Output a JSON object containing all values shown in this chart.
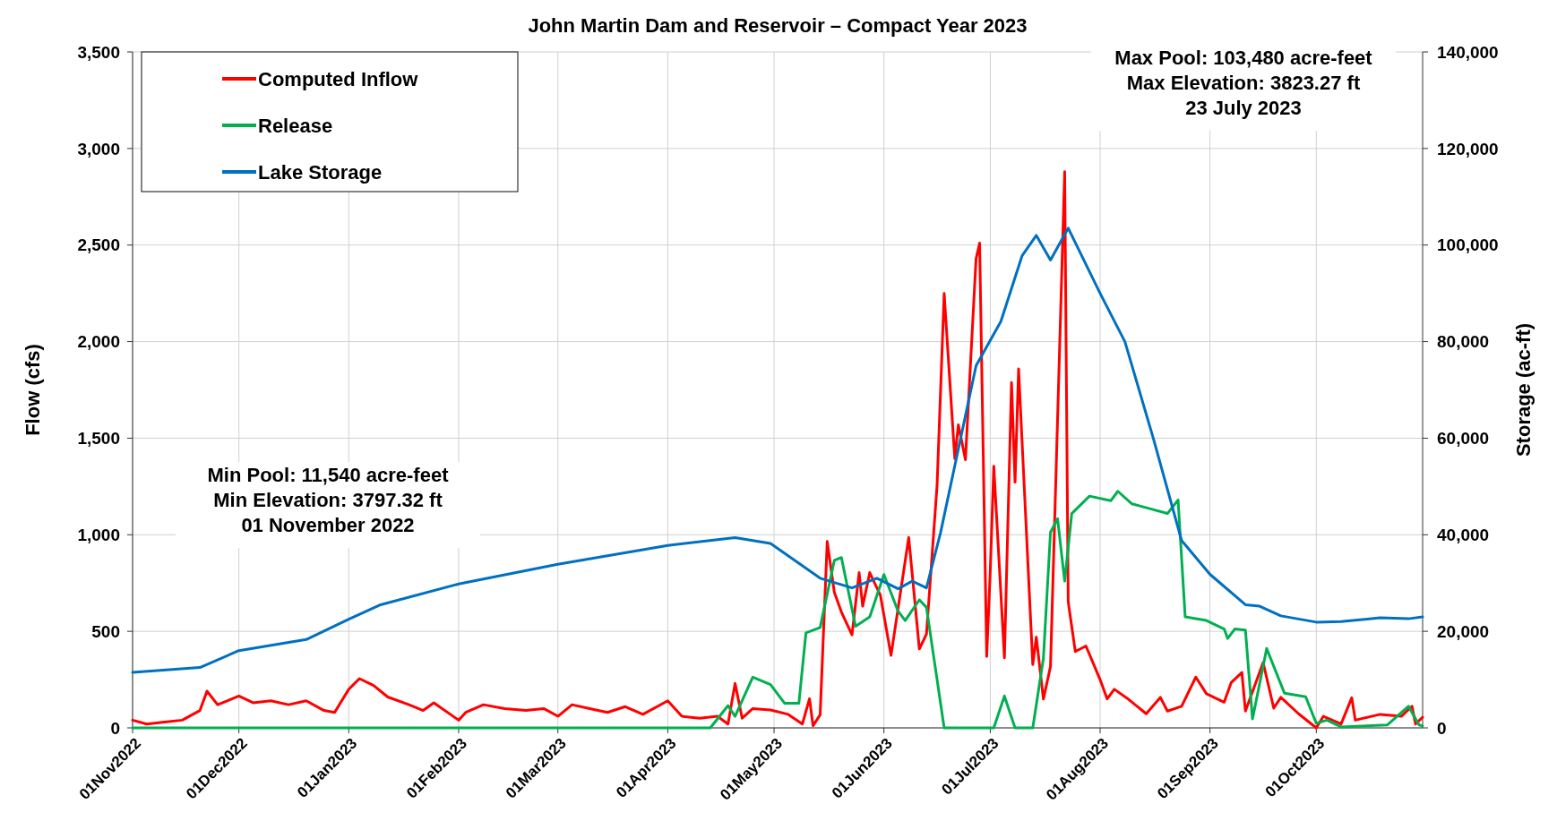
{
  "chart_data": {
    "type": "line",
    "title": "John Martin Dam and Reservoir – Compact Year 2023",
    "ylabel": "Flow (cfs)",
    "y2label": "Storage (ac-ft)",
    "xlim": [
      "2022-11-01",
      "2023-10-31"
    ],
    "xticks": [
      {
        "value": "2022-11-01",
        "label": "01Nov2022"
      },
      {
        "value": "2022-12-01",
        "label": "01Dec2022"
      },
      {
        "value": "2023-01-01",
        "label": "01Jan2023"
      },
      {
        "value": "2023-02-01",
        "label": "01Feb2023"
      },
      {
        "value": "2023-03-01",
        "label": "01Mar2023"
      },
      {
        "value": "2023-04-01",
        "label": "01Apr2023"
      },
      {
        "value": "2023-05-01",
        "label": "01May2023"
      },
      {
        "value": "2023-06-01",
        "label": "01Jun2023"
      },
      {
        "value": "2023-07-01",
        "label": "01Jul2023"
      },
      {
        "value": "2023-08-01",
        "label": "01Aug2023"
      },
      {
        "value": "2023-09-01",
        "label": "01Sep2023"
      },
      {
        "value": "2023-10-01",
        "label": "01Oct2023"
      }
    ],
    "ylim": [
      0,
      3500
    ],
    "yticks": [
      0,
      500,
      {
        "value": 1000,
        "label": "1,000"
      },
      {
        "value": 1500,
        "label": "1,500"
      },
      {
        "value": 2000,
        "label": "2,000"
      },
      {
        "value": 2500,
        "label": "2,500"
      },
      {
        "value": 3000,
        "label": "3,000"
      },
      {
        "value": 3500,
        "label": "3,500"
      }
    ],
    "y2lim": [
      0,
      140000
    ],
    "y2ticks": [
      0,
      {
        "value": 20000,
        "label": "20,000"
      },
      {
        "value": 40000,
        "label": "40,000"
      },
      {
        "value": 60000,
        "label": "60,000"
      },
      {
        "value": 80000,
        "label": "80,000"
      },
      {
        "value": 100000,
        "label": "100,000"
      },
      {
        "value": 120000,
        "label": "120,000"
      },
      {
        "value": 140000,
        "label": "140,000"
      }
    ],
    "grid": true,
    "legend": "top left",
    "line_style": "solid",
    "annotations": [
      "Min Pool: 11,540 acre-feet\nMin Elevation: 3797.32 ft\n01 November 2022",
      "Max Pool: 103,480 acre-feet\nMax Elevation: 3823.27 ft\n23 July 2023"
    ],
    "series": [
      {
        "name": "Computed Inflow",
        "color": "#ff0000",
        "x": [
          "2022-11-01",
          "2022-11-05",
          "2022-11-10",
          "2022-11-15",
          "2022-11-20",
          "2022-11-22",
          "2022-11-25",
          "2022-12-01",
          "2022-12-05",
          "2022-12-10",
          "2022-12-15",
          "2022-12-20",
          "2022-12-25",
          "2022-12-28",
          "2023-01-01",
          "2023-01-04",
          "2023-01-08",
          "2023-01-12",
          "2023-01-18",
          "2023-01-22",
          "2023-01-25",
          "2023-02-01",
          "2023-02-03",
          "2023-02-08",
          "2023-02-14",
          "2023-02-20",
          "2023-02-25",
          "2023-03-01",
          "2023-03-05",
          "2023-03-10",
          "2023-03-15",
          "2023-03-20",
          "2023-03-25",
          "2023-04-01",
          "2023-04-05",
          "2023-04-10",
          "2023-04-15",
          "2023-04-18",
          "2023-04-20",
          "2023-04-22",
          "2023-04-25",
          "2023-04-30",
          "2023-05-05",
          "2023-05-09",
          "2023-05-11",
          "2023-05-12",
          "2023-05-14",
          "2023-05-16",
          "2023-05-18",
          "2023-05-20",
          "2023-05-23",
          "2023-05-25",
          "2023-05-26",
          "2023-05-28",
          "2023-05-31",
          "2023-06-03",
          "2023-06-08",
          "2023-06-11",
          "2023-06-13",
          "2023-06-16",
          "2023-06-18",
          "2023-06-21",
          "2023-06-22",
          "2023-06-24",
          "2023-06-27",
          "2023-06-28",
          "2023-06-30",
          "2023-07-01",
          "2023-07-02",
          "2023-07-05",
          "2023-07-07",
          "2023-07-08",
          "2023-07-09",
          "2023-07-13",
          "2023-07-14",
          "2023-07-16",
          "2023-07-18",
          "2023-07-22",
          "2023-07-23",
          "2023-07-25",
          "2023-07-28",
          "2023-08-01",
          "2023-08-03",
          "2023-08-05",
          "2023-08-09",
          "2023-08-14",
          "2023-08-18",
          "2023-08-20",
          "2023-08-24",
          "2023-08-28",
          "2023-08-31",
          "2023-09-05",
          "2023-09-07",
          "2023-09-10",
          "2023-09-11",
          "2023-09-16",
          "2023-09-19",
          "2023-09-21",
          "2023-09-26",
          "2023-10-01",
          "2023-10-03",
          "2023-10-08",
          "2023-10-11",
          "2023-10-12",
          "2023-10-19",
          "2023-10-25",
          "2023-10-28",
          "2023-10-29",
          "2023-10-31"
        ],
        "values": [
          40,
          20,
          30,
          40,
          90,
          190,
          120,
          165,
          130,
          140,
          120,
          140,
          90,
          80,
          200,
          255,
          220,
          160,
          120,
          90,
          130,
          40,
          80,
          120,
          100,
          90,
          100,
          60,
          120,
          100,
          80,
          110,
          70,
          140,
          60,
          50,
          60,
          20,
          230,
          50,
          100,
          93,
          70,
          20,
          151,
          11,
          68,
          965,
          702,
          600,
          482,
          804,
          630,
          804,
          687,
          375,
          986,
          409,
          485,
          1257,
          2249,
          1394,
          1569,
          1389,
          2429,
          2510,
          370,
          809,
          1355,
          363,
          1788,
          1272,
          1859,
          328,
          470,
          149,
          318,
          2880,
          653,
          395,
          424,
          250,
          150,
          200,
          148,
          73,
          158,
          87,
          112,
          263,
          177,
          133,
          235,
          287,
          87,
          338,
          102,
          158,
          73,
          0,
          60,
          20,
          156,
          40,
          70,
          60,
          112,
          20,
          55
        ]
      },
      {
        "name": "Release",
        "color": "#00b050",
        "x": [
          "2022-11-01",
          "2023-04-13",
          "2023-04-18",
          "2023-04-20",
          "2023-04-25",
          "2023-04-30",
          "2023-05-04",
          "2023-05-08",
          "2023-05-10",
          "2023-05-14",
          "2023-05-18",
          "2023-05-20",
          "2023-05-24",
          "2023-05-28",
          "2023-06-01",
          "2023-06-05",
          "2023-06-07",
          "2023-06-11",
          "2023-06-13",
          "2023-06-18",
          "2023-07-02",
          "2023-07-05",
          "2023-07-08",
          "2023-07-13",
          "2023-07-16",
          "2023-07-18",
          "2023-07-20",
          "2023-07-22",
          "2023-07-24",
          "2023-07-29",
          "2023-08-04",
          "2023-08-06",
          "2023-08-10",
          "2023-08-15",
          "2023-08-20",
          "2023-08-23",
          "2023-08-25",
          "2023-08-31",
          "2023-09-05",
          "2023-09-06",
          "2023-09-08",
          "2023-09-11",
          "2023-09-13",
          "2023-09-17",
          "2023-09-22",
          "2023-09-28",
          "2023-10-01",
          "2023-10-04",
          "2023-10-08",
          "2023-10-21",
          "2023-10-27",
          "2023-10-30",
          "2023-10-31"
        ],
        "values": [
          0,
          0,
          115,
          60,
          263,
          224,
          127,
          127,
          492,
          520,
          867,
          882,
          526,
          575,
          794,
          604,
          556,
          663,
          624,
          0,
          0,
          165,
          0,
          0,
          360,
          1013,
          1083,
          760,
          1110,
          1200,
          1176,
          1225,
          1160,
          1135,
          1110,
          1180,
          575,
          556,
          512,
          463,
          512,
          507,
          46,
          411,
          180,
          161,
          24,
          40,
          5,
          15,
          112,
          15,
          10
        ]
      },
      {
        "name": "Lake Storage",
        "color": "#0070c0",
        "axis": "y2",
        "x": [
          "2022-11-01",
          "2022-11-20",
          "2022-12-01",
          "2022-12-20",
          "2023-01-01",
          "2023-01-10",
          "2023-02-01",
          "2023-03-01",
          "2023-04-01",
          "2023-04-20",
          "2023-04-30",
          "2023-05-14",
          "2023-05-23",
          "2023-05-30",
          "2023-06-05",
          "2023-06-09",
          "2023-06-13",
          "2023-06-17",
          "2023-06-27",
          "2023-07-04",
          "2023-07-10",
          "2023-07-14",
          "2023-07-18",
          "2023-07-23",
          "2023-08-01",
          "2023-08-08",
          "2023-08-16",
          "2023-08-24",
          "2023-09-01",
          "2023-09-11",
          "2023-09-15",
          "2023-09-21",
          "2023-10-01",
          "2023-10-08",
          "2023-10-19",
          "2023-10-27",
          "2023-10-31"
        ],
        "values": [
          11500,
          12500,
          16000,
          18300,
          22500,
          25500,
          29800,
          33900,
          37800,
          39400,
          38200,
          31000,
          29000,
          31000,
          28800,
          30400,
          29000,
          40500,
          75000,
          84200,
          97800,
          102000,
          96900,
          103500,
          90000,
          80000,
          60000,
          38800,
          31800,
          25500,
          25200,
          23200,
          21900,
          22000,
          22800,
          22600,
          23000
        ]
      }
    ]
  }
}
